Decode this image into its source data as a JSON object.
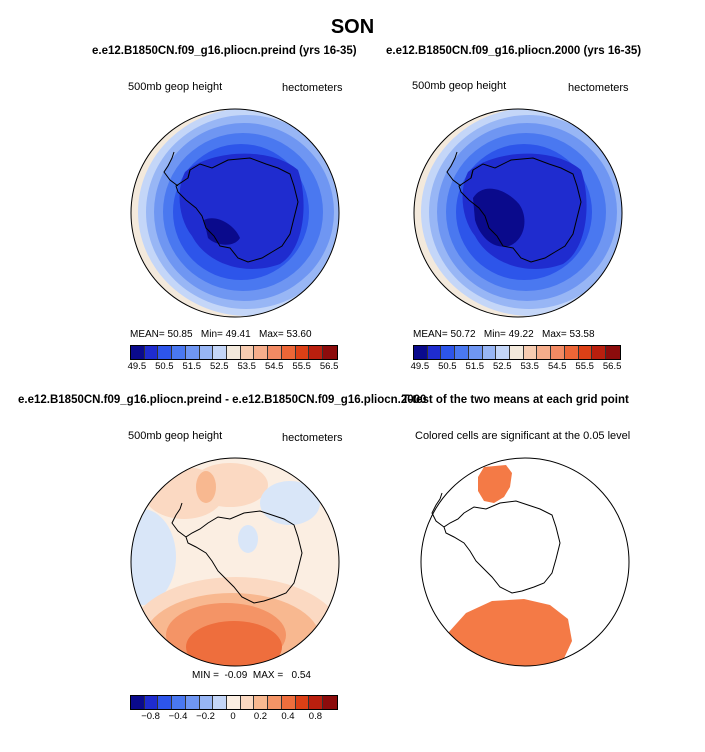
{
  "title": "SON",
  "panels": {
    "preind": {
      "run": "e.e12.B1850CN.f09_g16.pliocn.preind (yrs 16-35)",
      "left_label": "500mb geop height",
      "right_label": "hectometers",
      "stats": {
        "mean_label": "MEAN=",
        "mean": "50.85",
        "min_label": "Min=",
        "min": "49.41",
        "max_label": "Max=",
        "max": "53.60"
      }
    },
    "p2000": {
      "run": "e.e12.B1850CN.f09_g16.pliocn.2000 (yrs 16-35)",
      "left_label": "500mb geop height",
      "right_label": "hectometers",
      "stats": {
        "mean_label": "MEAN=",
        "mean": "50.72",
        "min_label": "Min=",
        "min": "49.22",
        "max_label": "Max=",
        "max": "53.58"
      }
    },
    "diff": {
      "run": "e.e12.B1850CN.f09_g16.pliocn.preind - e.e12.B1850CN.f09_g16.pliocn.2000",
      "left_label": "500mb geop height",
      "right_label": "hectometers",
      "stats": {
        "min_label": "MIN =",
        "min": "-0.09",
        "max_label": "MAX =",
        "max": "0.54"
      }
    },
    "ttest": {
      "run": "T-test of the two means at each grid point",
      "caption": "Colored cells are significant at the 0.05 level"
    }
  },
  "colorbar_abs": {
    "colors": [
      "#0a0a8c",
      "#1f2ccf",
      "#2d55ea",
      "#4a78f0",
      "#6f96f2",
      "#98b6f5",
      "#c4d6f8",
      "#f3e9dc",
      "#f7ccb1",
      "#f6ad8b",
      "#f28a63",
      "#ec6637",
      "#dc4016",
      "#b91f0e",
      "#8c0c0c"
    ],
    "ticks": [
      "49.5",
      "50.5",
      "51.5",
      "52.5",
      "53.5",
      "54.5",
      "55.5",
      "56.5"
    ]
  },
  "colorbar_diff": {
    "colors": [
      "#0a0a8c",
      "#1f2ccf",
      "#2d55ea",
      "#4a78f0",
      "#6f96f2",
      "#98b6f5",
      "#c4d6f8",
      "#fbeee2",
      "#fbd9c2",
      "#f8b890",
      "#f49466",
      "#ee6e3d",
      "#dc4016",
      "#b91f0e",
      "#8c0c0c"
    ],
    "ticks": [
      "−0.8",
      "−0.4",
      "−0.2",
      "0",
      "0.2",
      "0.4",
      "0.8"
    ]
  },
  "significance_color": "#f47a46",
  "map_icons": [
    "antarctica-coastline-icon"
  ]
}
